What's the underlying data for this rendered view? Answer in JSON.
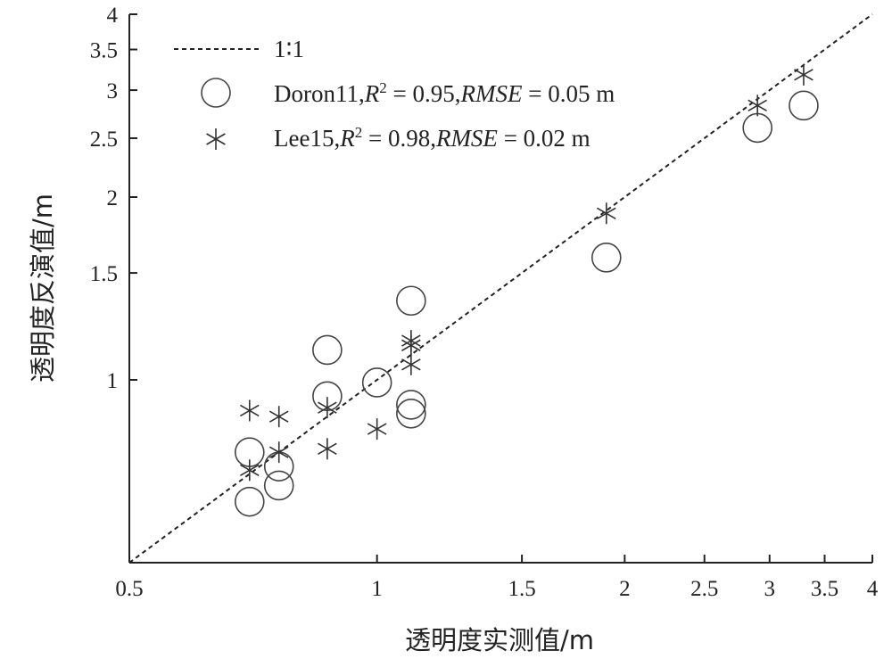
{
  "chart_data": {
    "type": "scatter",
    "xlabel": "透明度实测值/m",
    "ylabel": "透明度反演值/m",
    "x_scale": "log",
    "y_scale": "log",
    "xlim": [
      0.5,
      4
    ],
    "ylim": [
      0.5,
      4
    ],
    "x_ticks": [
      "0.5",
      "1",
      "1.5",
      "2",
      "2.5",
      "3",
      "3.5",
      "4"
    ],
    "y_ticks": [
      "1",
      "1.5",
      "2",
      "2.5",
      "3",
      "3.5",
      "4"
    ],
    "grid": false,
    "legend_position": "top-left",
    "reference_line": {
      "name": "1∶1",
      "style": "dashed"
    },
    "series": [
      {
        "name": "Doron11",
        "r2": "0.95",
        "rmse": "0.05",
        "unit": "m",
        "marker": "circle",
        "points": [
          {
            "x": 0.7,
            "y": 0.76
          },
          {
            "x": 0.7,
            "y": 0.63
          },
          {
            "x": 0.76,
            "y": 0.72
          },
          {
            "x": 0.76,
            "y": 0.67
          },
          {
            "x": 0.87,
            "y": 1.12
          },
          {
            "x": 0.87,
            "y": 0.94
          },
          {
            "x": 1.0,
            "y": 0.99
          },
          {
            "x": 1.1,
            "y": 1.35
          },
          {
            "x": 1.1,
            "y": 0.91
          },
          {
            "x": 1.1,
            "y": 0.88
          },
          {
            "x": 1.9,
            "y": 1.59
          },
          {
            "x": 2.9,
            "y": 2.6
          },
          {
            "x": 3.3,
            "y": 2.83
          }
        ]
      },
      {
        "name": "Lee15",
        "r2": "0.98",
        "rmse": "0.02",
        "unit": "m",
        "marker": "asterisk",
        "points": [
          {
            "x": 0.7,
            "y": 0.89
          },
          {
            "x": 0.7,
            "y": 0.71
          },
          {
            "x": 0.76,
            "y": 0.87
          },
          {
            "x": 0.76,
            "y": 0.76
          },
          {
            "x": 0.87,
            "y": 0.9
          },
          {
            "x": 0.87,
            "y": 0.77
          },
          {
            "x": 1.0,
            "y": 0.83
          },
          {
            "x": 1.1,
            "y": 1.16
          },
          {
            "x": 1.1,
            "y": 1.14
          },
          {
            "x": 1.1,
            "y": 1.06
          },
          {
            "x": 1.9,
            "y": 1.88
          },
          {
            "x": 2.9,
            "y": 2.83
          },
          {
            "x": 3.3,
            "y": 3.18
          }
        ]
      }
    ]
  }
}
